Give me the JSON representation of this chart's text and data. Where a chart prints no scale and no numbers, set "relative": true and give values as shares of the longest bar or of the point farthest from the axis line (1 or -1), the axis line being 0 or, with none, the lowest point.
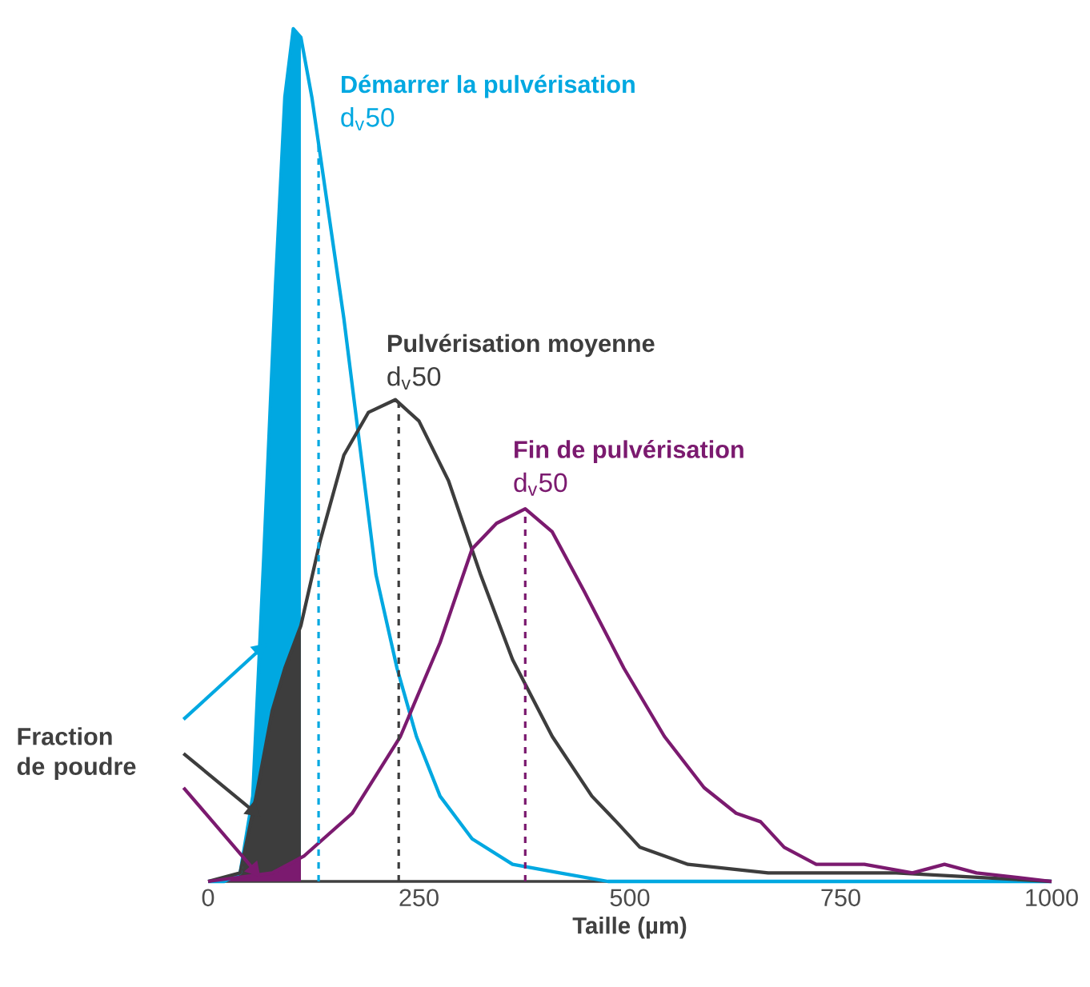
{
  "chart_data": {
    "type": "line",
    "relative": true,
    "xlabel": "Taille (µm)",
    "xlim": [
      0,
      1000
    ],
    "xticks": [
      0,
      250,
      500,
      750,
      1000
    ],
    "grid": false,
    "series": [
      {
        "type": "area",
        "color": "#00a8e1",
        "x": [
          19,
          38,
          53,
          66,
          80,
          91,
          101,
          110
        ],
        "values": [
          0.0,
          0.01,
          0.1,
          0.38,
          0.7,
          0.92,
          1.0,
          0.99
        ]
      },
      {
        "type": "area",
        "color": "#3d3d3d",
        "x": [
          0,
          38,
          57,
          76,
          91,
          110
        ],
        "values": [
          0,
          0.01,
          0.1,
          0.2,
          0.25,
          0.3
        ]
      },
      {
        "type": "area",
        "color": "#7b1a6f",
        "x": [
          0,
          76,
          110
        ],
        "values": [
          0,
          0.01,
          0.03
        ]
      },
      {
        "type": "line",
        "name": "Démarrer la pulvérisation",
        "color": "#00a8e1",
        "x": [
          0,
          19,
          38,
          53,
          66,
          80,
          91,
          101,
          110,
          123,
          142,
          161,
          180,
          199,
          224,
          247,
          275,
          313,
          361,
          417,
          474,
          1000
        ],
        "values": [
          0,
          0.0,
          0.01,
          0.1,
          0.38,
          0.7,
          0.92,
          1.0,
          0.99,
          0.92,
          0.79,
          0.66,
          0.51,
          0.36,
          0.25,
          0.17,
          0.1,
          0.05,
          0.02,
          0.01,
          0.0,
          0.0
        ]
      },
      {
        "type": "line",
        "name": "Pulvérisation moyenne",
        "color": "#3d3d3d",
        "x": [
          0,
          38,
          57,
          76,
          91,
          110,
          133,
          161,
          190,
          222,
          250,
          285,
          323,
          361,
          408,
          455,
          484,
          512,
          569,
          664,
          740,
          816,
          1000
        ],
        "values": [
          0,
          0.01,
          0.1,
          0.2,
          0.25,
          0.3,
          0.4,
          0.5,
          0.55,
          0.565,
          0.54,
          0.47,
          0.36,
          0.26,
          0.17,
          0.1,
          0.07,
          0.04,
          0.02,
          0.01,
          0.01,
          0.01,
          0
        ]
      },
      {
        "type": "line",
        "name": "Fin de pulvérisation",
        "color": "#7b1a6f",
        "x": [
          0,
          76,
          114,
          171,
          228,
          275,
          313,
          342,
          376,
          408,
          446,
          493,
          541,
          588,
          626,
          655,
          683,
          721,
          778,
          835,
          873,
          911,
          1000
        ],
        "values": [
          0,
          0.01,
          0.03,
          0.08,
          0.17,
          0.28,
          0.39,
          0.42,
          0.437,
          0.41,
          0.34,
          0.25,
          0.17,
          0.11,
          0.08,
          0.07,
          0.04,
          0.02,
          0.02,
          0.01,
          0.02,
          0.01,
          0
        ]
      }
    ],
    "ref_lines": [
      {
        "axis": "x",
        "value": 131,
        "label": "d$_{v}$50",
        "color": "#00a8e1",
        "line_style": "dashed"
      },
      {
        "axis": "x",
        "value": 226,
        "label": "d$_{v}$50",
        "color": "#3d3d3d",
        "line_style": "dashed"
      },
      {
        "axis": "x",
        "value": 376,
        "label": "d$_{v}$50",
        "color": "#7b1a6f",
        "line_style": "dashed"
      }
    ],
    "annotations": [
      "Fraction de poudre"
    ]
  }
}
